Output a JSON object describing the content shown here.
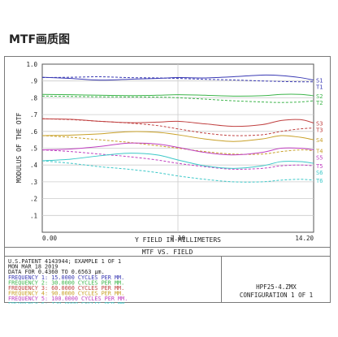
{
  "page_title": "MTF画质图",
  "colors": {
    "frame": "#7a7a7a",
    "grid": "#cccccc",
    "text": "#222222",
    "background": "#ffffff"
  },
  "chart_data": {
    "type": "line",
    "title": "MTF VS. FIELD",
    "xlabel": "Y FIELD IN MILLIMETERS",
    "ylabel": "MODULUS OF THE OTF",
    "xlim": [
      0,
      14.2
    ],
    "ylim": [
      0,
      1.0
    ],
    "grid": true,
    "x_ticks": [
      {
        "value": 0,
        "label": "0.00"
      },
      {
        "value": 7.1,
        "label": "7.10"
      },
      {
        "value": 14.2,
        "label": "14.20"
      }
    ],
    "y_ticks": [
      {
        "value": 0.1,
        "label": ".1"
      },
      {
        "value": 0.2,
        "label": ".2"
      },
      {
        "value": 0.3,
        "label": ".3"
      },
      {
        "value": 0.4,
        "label": ".4"
      },
      {
        "value": 0.5,
        "label": ".5"
      },
      {
        "value": 0.6,
        "label": ".6"
      },
      {
        "value": 0.7,
        "label": ".7"
      },
      {
        "value": 0.8,
        "label": ".8"
      },
      {
        "value": 0.9,
        "label": ".9"
      },
      {
        "value": 1.0,
        "label": "1.0"
      }
    ],
    "series": [
      {
        "name": "S1",
        "color": "#3a3ab4",
        "style": "solid",
        "x": [
          0,
          1.5,
          3,
          4.5,
          6,
          7.1,
          8.5,
          10,
          11.5,
          12.5,
          13.5,
          14.2
        ],
        "values": [
          0.922,
          0.915,
          0.905,
          0.91,
          0.915,
          0.92,
          0.918,
          0.925,
          0.935,
          0.932,
          0.92,
          0.905
        ]
      },
      {
        "name": "T1",
        "color": "#3a3ab4",
        "style": "dashed",
        "x": [
          0,
          1.5,
          3,
          4.5,
          6,
          7.1,
          8.5,
          10,
          11.5,
          12.5,
          13.5,
          14.2
        ],
        "values": [
          0.92,
          0.922,
          0.925,
          0.92,
          0.918,
          0.915,
          0.91,
          0.906,
          0.9,
          0.897,
          0.895,
          0.895
        ]
      },
      {
        "name": "S2",
        "color": "#3cb44a",
        "style": "solid",
        "x": [
          0,
          1.5,
          3,
          4.5,
          6,
          7.1,
          8.5,
          10,
          11.5,
          12.5,
          13.5,
          14.2
        ],
        "values": [
          0.82,
          0.818,
          0.815,
          0.813,
          0.815,
          0.818,
          0.815,
          0.81,
          0.812,
          0.82,
          0.82,
          0.812
        ]
      },
      {
        "name": "T2",
        "color": "#3cb44a",
        "style": "dashed",
        "x": [
          0,
          1.5,
          3,
          4.5,
          6,
          7.1,
          8.5,
          10,
          11.5,
          12.5,
          13.5,
          14.2
        ],
        "values": [
          0.81,
          0.808,
          0.806,
          0.805,
          0.804,
          0.8,
          0.792,
          0.782,
          0.775,
          0.772,
          0.775,
          0.782
        ]
      },
      {
        "name": "S3",
        "color": "#c04040",
        "style": "solid",
        "x": [
          0,
          1.5,
          3,
          4.5,
          6,
          7.1,
          8.5,
          10,
          11.5,
          12.5,
          13.5,
          14.2
        ],
        "values": [
          0.675,
          0.672,
          0.66,
          0.652,
          0.655,
          0.66,
          0.645,
          0.63,
          0.64,
          0.665,
          0.67,
          0.65
        ]
      },
      {
        "name": "T3",
        "color": "#c04040",
        "style": "dashed",
        "x": [
          0,
          1.5,
          3,
          4.5,
          6,
          7.1,
          8.5,
          10,
          11.5,
          12.5,
          13.5,
          14.2
        ],
        "values": [
          0.675,
          0.67,
          0.66,
          0.65,
          0.635,
          0.615,
          0.59,
          0.575,
          0.58,
          0.6,
          0.615,
          0.62
        ]
      },
      {
        "name": "S4",
        "color": "#c8a028",
        "style": "solid",
        "x": [
          0,
          1.5,
          3,
          4.5,
          6,
          7.1,
          8.5,
          10,
          11.5,
          12.5,
          13.5,
          14.2
        ],
        "values": [
          0.575,
          0.578,
          0.585,
          0.598,
          0.595,
          0.58,
          0.555,
          0.54,
          0.555,
          0.575,
          0.565,
          0.55
        ]
      },
      {
        "name": "T4",
        "color": "#c8a028",
        "style": "dashed",
        "x": [
          0,
          1.5,
          3,
          4.5,
          6,
          7.1,
          8.5,
          10,
          11.5,
          12.5,
          13.5,
          14.2
        ],
        "values": [
          0.575,
          0.565,
          0.55,
          0.535,
          0.515,
          0.5,
          0.48,
          0.465,
          0.465,
          0.48,
          0.49,
          0.485
        ]
      },
      {
        "name": "S5",
        "color": "#c040c0",
        "style": "solid",
        "x": [
          0,
          1.5,
          3,
          4.5,
          6,
          7.1,
          8.5,
          10,
          11.5,
          12.5,
          13.5,
          14.2
        ],
        "values": [
          0.49,
          0.495,
          0.51,
          0.53,
          0.525,
          0.505,
          0.475,
          0.46,
          0.475,
          0.5,
          0.5,
          0.49
        ]
      },
      {
        "name": "T5",
        "color": "#c040c0",
        "style": "dashed",
        "x": [
          0,
          1.5,
          3,
          4.5,
          6,
          7.1,
          8.5,
          10,
          11.5,
          12.5,
          13.5,
          14.2
        ],
        "values": [
          0.49,
          0.48,
          0.465,
          0.45,
          0.43,
          0.41,
          0.39,
          0.375,
          0.38,
          0.395,
          0.4,
          0.395
        ]
      },
      {
        "name": "S6",
        "color": "#3cc8c8",
        "style": "solid",
        "x": [
          0,
          1.5,
          3,
          4.5,
          6,
          7.1,
          8.5,
          10,
          11.5,
          12.5,
          13.5,
          14.2
        ],
        "values": [
          0.425,
          0.435,
          0.455,
          0.47,
          0.46,
          0.43,
          0.395,
          0.38,
          0.395,
          0.42,
          0.42,
          0.41
        ]
      },
      {
        "name": "T6",
        "color": "#3cc8c8",
        "style": "dashed",
        "x": [
          0,
          1.5,
          3,
          4.5,
          6,
          7.1,
          8.5,
          10,
          11.5,
          12.5,
          13.5,
          14.2
        ],
        "values": [
          0.425,
          0.41,
          0.39,
          0.375,
          0.355,
          0.335,
          0.315,
          0.3,
          0.3,
          0.31,
          0.315,
          0.31
        ]
      }
    ]
  },
  "info": {
    "lines": [
      "U.S.PATENT 4143944; EXAMPLE 1 OF 1",
      "MON MAR 18 2019",
      "DATA FOR 0.4360 TO 0.6563 μm."
    ],
    "frequencies": [
      {
        "text": "FREQUENCY 1:  15.0000 CYCLES PER MM.",
        "color": "#3a3ab4"
      },
      {
        "text": "FREQUENCY 2:  30.0000 CYCLES PER MM.",
        "color": "#3cb44a"
      },
      {
        "text": "FREQUENCY 3:  60.0000 CYCLES PER MM.",
        "color": "#c04040"
      },
      {
        "text": "FREQUENCY 4:  90.0000 CYCLES PER MM.",
        "color": "#c8a028"
      },
      {
        "text": "FREQUENCY 5: 100.0000 CYCLES PER MM.",
        "color": "#c040c0"
      },
      {
        "text": "FREQUENCY 6: 120.0000 CYCLES PER MM.",
        "color": "#3cc8c8"
      }
    ],
    "file_name": "HPF25-4.ZMX",
    "configuration": "CONFIGURATION 1 OF 1"
  }
}
